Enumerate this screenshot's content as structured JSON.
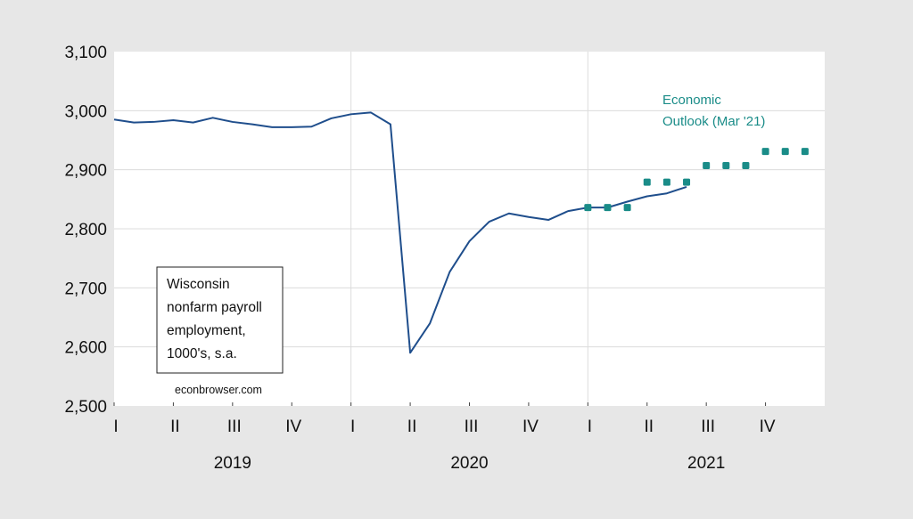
{
  "chart_data": {
    "type": "line",
    "title": "",
    "xlabel": "",
    "ylabel": "",
    "ylim": [
      2500,
      3100
    ],
    "yticks": [
      2500,
      2600,
      2700,
      2800,
      2900,
      3000,
      3100
    ],
    "ytick_labels": [
      "2,500",
      "2,600",
      "2,700",
      "2,800",
      "2,900",
      "3,000",
      "3,100"
    ],
    "grid": true,
    "quarter_labels": [
      "I",
      "II",
      "III",
      "IV",
      "I",
      "II",
      "III",
      "IV",
      "I",
      "II",
      "III",
      "IV"
    ],
    "year_labels": [
      "2019",
      "2020",
      "2021"
    ],
    "series": [
      {
        "kind": "line",
        "color": "#1f4e8c",
        "x": [
          "2019-01",
          "2019-02",
          "2019-03",
          "2019-04",
          "2019-05",
          "2019-06",
          "2019-07",
          "2019-08",
          "2019-09",
          "2019-10",
          "2019-11",
          "2019-12",
          "2020-01",
          "2020-02",
          "2020-03",
          "2020-04",
          "2020-05",
          "2020-06",
          "2020-07",
          "2020-08",
          "2020-09",
          "2020-10",
          "2020-11",
          "2020-12",
          "2021-01",
          "2021-02",
          "2021-03",
          "2021-04",
          "2021-05",
          "2021-06"
        ],
        "values": [
          2985,
          2980,
          2981,
          2984,
          2980,
          2988,
          2981,
          2977,
          2972,
          2972,
          2973,
          2987,
          2994,
          2997,
          2977,
          2590,
          2640,
          2727,
          2779,
          2812,
          2826,
          2820,
          2815,
          2830,
          2836,
          2836,
          2846,
          2855,
          2860,
          2871
        ]
      },
      {
        "kind": "points",
        "color": "#1a8c88",
        "x": [
          "2021-01",
          "2021-02",
          "2021-03",
          "2021-04",
          "2021-05",
          "2021-06",
          "2021-07",
          "2021-08",
          "2021-09",
          "2021-10",
          "2021-11",
          "2021-12"
        ],
        "values": [
          2836,
          2836,
          2836,
          2879,
          2879,
          2879,
          2907,
          2907,
          2907,
          2931,
          2931,
          2931
        ]
      }
    ],
    "annotation": {
      "lines": [
        "Economic",
        "Outlook (Mar '21)"
      ]
    },
    "textbox": {
      "lines": [
        "Wisconsin",
        "nonfarm payroll",
        "employment,",
        "1000's, s.a."
      ]
    },
    "credit": "econbrowser.com"
  }
}
